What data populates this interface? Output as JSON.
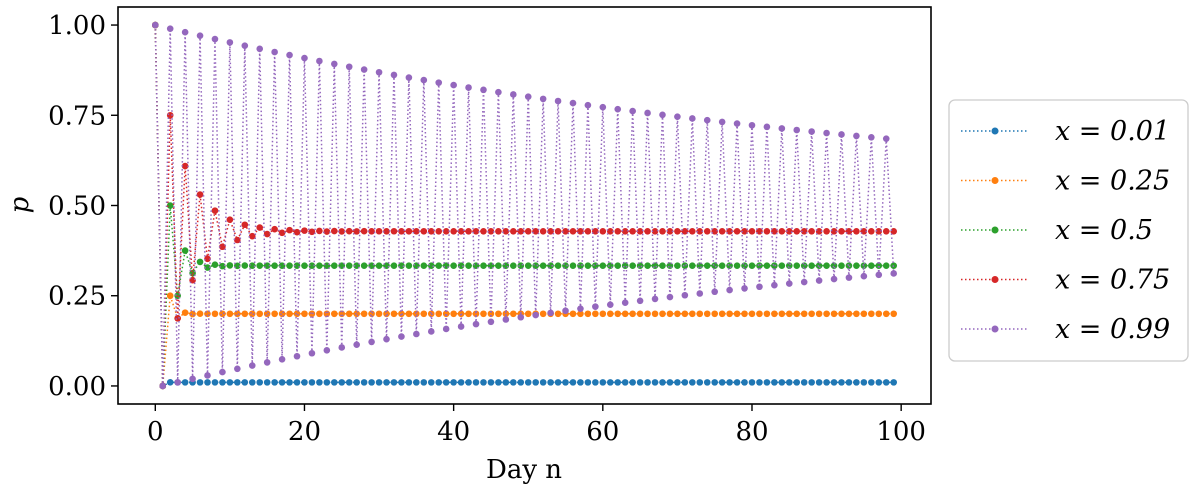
{
  "chart_data": {
    "type": "line",
    "xlabel": "Day n",
    "ylabel": "p",
    "xlim": [
      -5,
      104
    ],
    "ylim": [
      -0.05,
      1.05
    ],
    "xticks": [
      0,
      20,
      40,
      60,
      80,
      100
    ],
    "xtick_labels": [
      "0",
      "20",
      "40",
      "60",
      "80",
      "100"
    ],
    "yticks": [
      0.0,
      0.25,
      0.5,
      0.75,
      1.0
    ],
    "ytick_labels": [
      "0.00",
      "0.25",
      "0.50",
      "0.75",
      "1.00"
    ],
    "x_range": [
      0,
      99
    ],
    "initial_p": 1.0,
    "recurrence": "p[n+1] = (1 - p[n]) * x",
    "line_style": "dotted with circle markers",
    "grid": false,
    "legend_position": "outside right",
    "series": [
      {
        "name": "x = 0.01",
        "x_param": 0.01,
        "color": "#1f77b4"
      },
      {
        "name": "x = 0.25",
        "x_param": 0.25,
        "color": "#ff7f0e"
      },
      {
        "name": "x = 0.5",
        "x_param": 0.5,
        "color": "#2ca02c"
      },
      {
        "name": "x = 0.75",
        "x_param": 0.75,
        "color": "#d62728"
      },
      {
        "name": "x = 0.99",
        "x_param": 0.99,
        "color": "#9467bd"
      }
    ]
  }
}
